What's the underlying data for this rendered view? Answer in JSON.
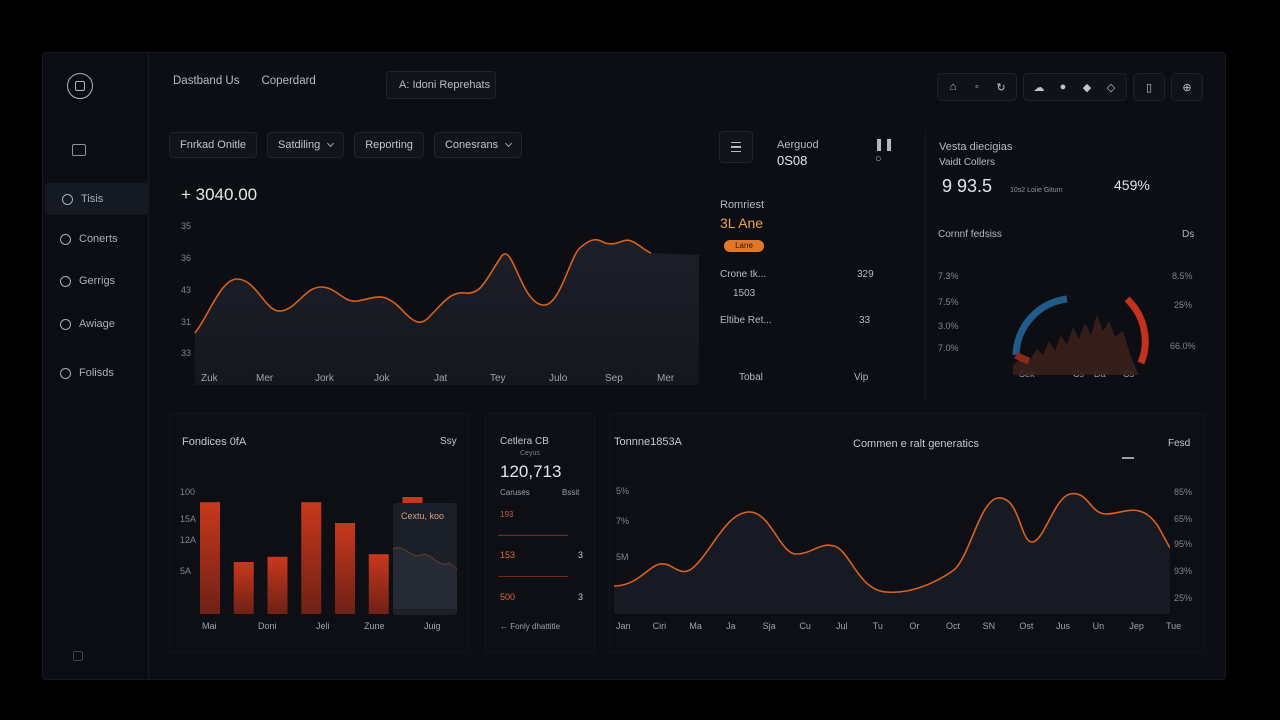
{
  "sidebar": {
    "items": [
      {
        "label": "Tisis",
        "active": true,
        "icon": "circle-icon"
      },
      {
        "label": "Conerts",
        "active": false,
        "icon": "circle-icon"
      },
      {
        "label": "Gerrigs",
        "active": false,
        "icon": "gear-icon"
      },
      {
        "label": "Awiage",
        "active": false,
        "icon": "circle-icon"
      },
      {
        "label": "Folisds",
        "active": false,
        "icon": "folder-icon"
      }
    ]
  },
  "header": {
    "nav": [
      "Dastband Us",
      "Coperdard"
    ],
    "search": "A: Idoni Reprehats",
    "icons": [
      "home-icon",
      "user-icon",
      "refresh-icon",
      "cloud-icon",
      "pin-icon",
      "diamond-icon",
      "shield-icon",
      "file-icon",
      "lock-icon"
    ]
  },
  "filters": [
    {
      "label": "Fnrkad Onitle",
      "dropdown": false
    },
    {
      "label": "Satdiling",
      "dropdown": true
    },
    {
      "label": "Reporting",
      "dropdown": false
    },
    {
      "label": "Conesrans",
      "dropdown": true
    }
  ],
  "main_chart": {
    "value": "+ 3040.00",
    "y_ticks": [
      "35",
      "36",
      "43",
      "31",
      "33"
    ],
    "x_ticks": [
      "Zuk",
      "Mer",
      "Jork",
      "Jok",
      "Jat",
      "Tey",
      "Julo",
      "Sep",
      "Mer"
    ]
  },
  "mid_panel": {
    "title": "Aerguod",
    "value": "0S08",
    "section": "Romriest",
    "amount": "3L Ane",
    "badge": "Lane",
    "rows": [
      {
        "label": "Crone tk...",
        "value": "329"
      },
      {
        "label": "1503",
        "value": ""
      },
      {
        "label": "Eltibe Ret...",
        "value": "33"
      }
    ],
    "footer_left": "Tobal",
    "footer_right": "Vip"
  },
  "right_panel": {
    "title": "Vesta diecigias",
    "subtitle": "Vaidt Collers",
    "value": "9 93.5",
    "note": "10s2 Loiie Gitum",
    "percent": "459%",
    "chart_title": "Cornnf fedsiss",
    "chart_tag": "Ds",
    "left_ticks": [
      "7.3%",
      "7.5%",
      "3.0%",
      "7.0%"
    ],
    "right_ticks": [
      "8.5%",
      "25%",
      "66.0%"
    ],
    "x_ticks": [
      "Sek",
      "Cs",
      "Da",
      "Cs"
    ]
  },
  "bottom_left": {
    "title": "Fondices 0fA",
    "tag": "Ssy",
    "y_ticks": [
      "100",
      "15A",
      "12A",
      "5A"
    ],
    "x_ticks": [
      "Mai",
      "Doni",
      "Jeli",
      "Zune",
      "Juig"
    ],
    "tooltip": "Cextu, koo",
    "chart_data": {
      "type": "bar",
      "values": [
        86,
        40,
        44,
        86,
        70,
        46,
        90,
        30
      ],
      "ylim": [
        0,
        100
      ]
    }
  },
  "bottom_mid": {
    "title": "Cetlera CB",
    "subtitle": "Ceyus",
    "value": "120,713",
    "col_left": "Caruses",
    "col_right": "Bssit",
    "rows": [
      {
        "label": "193",
        "value": ""
      },
      {
        "label": "153",
        "value": "3"
      },
      {
        "label": "500",
        "value": "3"
      }
    ],
    "footer": "← Fonly dhattitle"
  },
  "bottom_right": {
    "title": "Tonnne1853A",
    "center_title": "Commen e ralt generatics",
    "tag": "Fesd",
    "left_ticks": [
      "5%",
      "7%",
      "5M"
    ],
    "right_ticks": [
      "85%",
      "65%",
      "95%",
      "93%",
      "25%"
    ],
    "x_ticks": [
      "Jan",
      "Ciri",
      "Ma",
      "Ja",
      "Sja",
      "Cu",
      "Jul",
      "Tu",
      "Or",
      "Oct",
      "SN",
      "Ost",
      "Jus",
      "Un",
      "Jep",
      "Tue"
    ]
  },
  "colors": {
    "accent": "#e2772a",
    "line": "#d9611c",
    "blue": "#1f5c8a",
    "red": "#c2321f",
    "panel": "#0d0f15"
  }
}
